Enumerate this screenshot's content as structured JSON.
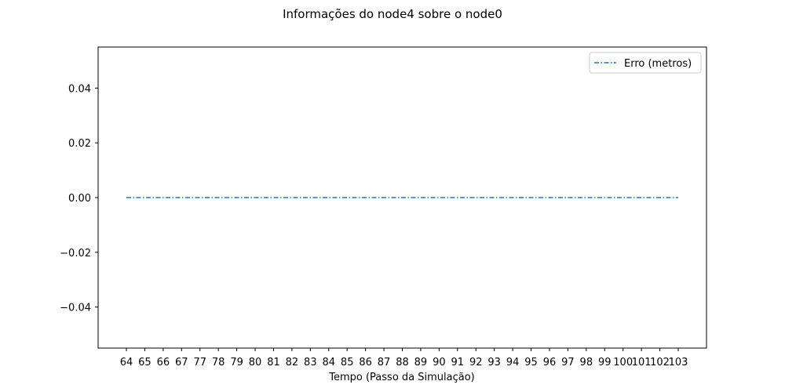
{
  "chart_data": {
    "type": "line",
    "title": "Informações do node4 sobre o node0",
    "xlabel": "Tempo (Passo da Simulação)",
    "ylabel": "",
    "categories": [
      "64",
      "65",
      "66",
      "67",
      "77",
      "78",
      "79",
      "80",
      "81",
      "82",
      "83",
      "84",
      "85",
      "86",
      "87",
      "88",
      "89",
      "90",
      "91",
      "92",
      "93",
      "94",
      "95",
      "96",
      "97",
      "98",
      "99",
      "100",
      "101",
      "102",
      "103"
    ],
    "series": [
      {
        "name": "Erro (metros)",
        "values": [
          0,
          0,
          0,
          0,
          0,
          0,
          0,
          0,
          0,
          0,
          0,
          0,
          0,
          0,
          0,
          0,
          0,
          0,
          0,
          0,
          0,
          0,
          0,
          0,
          0,
          0,
          0,
          0,
          0,
          0,
          0
        ],
        "color": "#1f77b4",
        "line_style": "dashdot"
      }
    ],
    "ylim": [
      -0.055,
      0.055
    ],
    "yticks": [
      "0.04",
      "0.02",
      "0.00",
      "−0.02",
      "−0.04"
    ],
    "ytick_values": [
      0.04,
      0.02,
      0.0,
      -0.02,
      -0.04
    ],
    "grid": false,
    "legend_position": "top-right"
  }
}
